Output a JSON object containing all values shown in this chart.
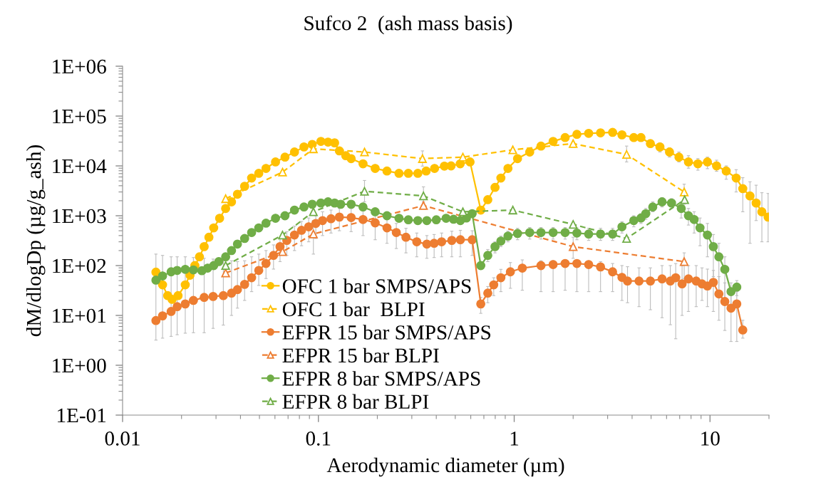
{
  "chart_data": {
    "type": "line",
    "title": "Sufco 2  (ash mass basis)",
    "xlabel": "Aerodynamic diameter (µm)",
    "ylabel": "dM/dlogDp (µg/g_ash)",
    "log": "xy",
    "xlim": [
      0.01,
      20
    ],
    "xticks": [
      0.01,
      0.1,
      1,
      10
    ],
    "ylim": [
      0.1,
      1000000
    ],
    "yticks": [
      {
        "value": 0.1,
        "label": "1E-01"
      },
      {
        "value": 1,
        "label": "1E+00"
      },
      {
        "value": 10,
        "label": "1E+01"
      },
      {
        "value": 100,
        "label": "1E+02"
      },
      {
        "value": 1000,
        "label": "1E+03"
      },
      {
        "value": 10000,
        "label": "1E+04"
      },
      {
        "value": 100000,
        "label": "1E+05"
      },
      {
        "value": 1000000,
        "label": "1E+06"
      }
    ],
    "legend": "bottom left",
    "series": [
      {
        "name": "OFC 1 bar SMPS/APS",
        "color": "#ffc000",
        "marker": "circle",
        "line_style": "solid",
        "x": [
          0.0148,
          0.016,
          0.017,
          0.0179,
          0.0192,
          0.0209,
          0.0221,
          0.0234,
          0.0247,
          0.0261,
          0.0276,
          0.0292,
          0.0313,
          0.0336,
          0.036,
          0.0386,
          0.042,
          0.0456,
          0.0496,
          0.054,
          0.0604,
          0.0675,
          0.0755,
          0.0844,
          0.093,
          0.103,
          0.112,
          0.121,
          0.128,
          0.138,
          0.147,
          0.169,
          0.195,
          0.224,
          0.258,
          0.288,
          0.322,
          0.355,
          0.392,
          0.44,
          0.476,
          0.53,
          0.595,
          0.675,
          0.733,
          0.798,
          0.855,
          0.929,
          1.04,
          1.2,
          1.37,
          1.58,
          1.82,
          2.09,
          2.4,
          2.76,
          3.18,
          3.55,
          4.08,
          4.44,
          4.96,
          5.55,
          6.21,
          6.94,
          7.76,
          8.67,
          9.7,
          10.8,
          12.1,
          13.6,
          14.7,
          16,
          17.2,
          18.4,
          19.8
        ],
        "values": [
          74,
          41,
          25,
          21,
          25,
          41,
          64,
          100,
          150,
          240,
          370,
          570,
          890,
          1400,
          1900,
          2700,
          3900,
          5700,
          7100,
          8900,
          12000,
          15000,
          19000,
          24000,
          27000,
          31000,
          30000,
          29000,
          20000,
          16000,
          14000,
          11000,
          8900,
          7900,
          7100,
          7100,
          7100,
          7900,
          8900,
          9900,
          10000,
          11000,
          12000,
          1300,
          2100,
          3700,
          5700,
          8900,
          14000,
          19000,
          25000,
          31000,
          37000,
          43000,
          45000,
          46000,
          47000,
          42000,
          37000,
          37000,
          28000,
          24000,
          19000,
          15000,
          12000,
          11000,
          12000,
          10000,
          7900,
          5700,
          3500,
          2500,
          1800,
          1200,
          940
        ],
        "errors": [
          null,
          null,
          null,
          null,
          null,
          null,
          null,
          null,
          null,
          null,
          null,
          null,
          null,
          null,
          null,
          null,
          null,
          null,
          null,
          null,
          null,
          null,
          null,
          null,
          null,
          null,
          null,
          null,
          null,
          null,
          null,
          null,
          null,
          null,
          null,
          null,
          null,
          null,
          null,
          null,
          null,
          null,
          null,
          null,
          null,
          null,
          null,
          null,
          null,
          null,
          null,
          null,
          null,
          null,
          null,
          null,
          null,
          null,
          null,
          null,
          null,
          [
            19000,
            29000
          ],
          [
            15000,
            23000
          ],
          [
            12000,
            19000
          ],
          [
            9000,
            16000
          ],
          [
            8200,
            14000
          ],
          [
            8800,
            15000
          ],
          [
            7800,
            13000
          ],
          [
            5400,
            10000
          ],
          [
            3000,
            8400
          ],
          [
            1200,
            5800
          ],
          [
            280,
            4800
          ],
          [
            800,
            4100
          ],
          [
            300,
            2900
          ],
          [
            300,
            2800
          ]
        ]
      },
      {
        "name": "OFC 1 bar  BLPI",
        "color": "#ffc000",
        "marker": "triangle",
        "line_style": "dashed",
        "x": [
          0.0336,
          0.0656,
          0.0943,
          0.172,
          0.34,
          0.547,
          0.984,
          2.0,
          3.75,
          7.38
        ],
        "values": [
          2200,
          7500,
          22000,
          19000,
          14000,
          15000,
          21000,
          28000,
          17000,
          3000
        ],
        "errors": [
          null,
          null,
          null,
          null,
          [
            9900,
            20000
          ],
          null,
          null,
          null,
          [
            12000,
            25000
          ],
          [
            1700,
            4300
          ]
        ]
      },
      {
        "name": "EFPR 15 bar SMPS/APS",
        "color": "#ed7d31",
        "marker": "circle",
        "line_style": "solid",
        "x": [
          0.0148,
          0.016,
          0.0177,
          0.019,
          0.0209,
          0.023,
          0.0261,
          0.029,
          0.0327,
          0.036,
          0.0386,
          0.042,
          0.0456,
          0.0496,
          0.054,
          0.059,
          0.0637,
          0.069,
          0.0755,
          0.082,
          0.0892,
          0.097,
          0.105,
          0.116,
          0.128,
          0.147,
          0.169,
          0.195,
          0.224,
          0.25,
          0.28,
          0.318,
          0.358,
          0.39,
          0.426,
          0.48,
          0.531,
          0.61,
          0.675,
          0.733,
          0.786,
          0.855,
          0.956,
          1.1,
          1.37,
          1.58,
          1.82,
          2.09,
          2.4,
          2.76,
          3.18,
          3.55,
          3.79,
          4.34,
          4.96,
          5.69,
          6.27,
          6.68,
          7.2,
          7.76,
          8.5,
          9.1,
          9.7,
          10.4,
          11.1,
          11.9,
          12.8,
          13.7,
          14.7
        ],
        "values": [
          7.9,
          9.8,
          12,
          15,
          17,
          20,
          23,
          24,
          25,
          28,
          33,
          42,
          57,
          80,
          110,
          160,
          240,
          320,
          410,
          510,
          600,
          700,
          800,
          870,
          940,
          920,
          840,
          720,
          570,
          460,
          370,
          300,
          270,
          280,
          300,
          320,
          330,
          330,
          17,
          28,
          41,
          57,
          75,
          89,
          100,
          105,
          110,
          110,
          105,
          94,
          75,
          58,
          49,
          49,
          49,
          54,
          49,
          57,
          43,
          54,
          49,
          43,
          39,
          46,
          27,
          19,
          14,
          17,
          5.1
        ],
        "errors": [
          [
            3.2,
            170
          ],
          [
            3.5,
            160
          ],
          [
            3.8,
            150
          ],
          [
            4.1,
            150
          ],
          [
            4.4,
            150
          ],
          [
            4.5,
            145
          ],
          [
            4.5,
            140
          ],
          [
            5.5,
            135
          ],
          [
            6.4,
            130
          ],
          [
            10,
            125
          ],
          [
            14,
            120
          ],
          [
            20,
            125
          ],
          [
            30,
            150
          ],
          [
            40,
            170
          ],
          [
            55,
            200
          ],
          [
            85,
            260
          ],
          [
            120,
            360
          ],
          [
            160,
            480
          ],
          [
            200,
            620
          ],
          [
            250,
            770
          ],
          [
            300,
            900
          ],
          [
            350,
            1000
          ],
          [
            400,
            1200
          ],
          [
            450,
            1300
          ],
          [
            500,
            1400
          ],
          [
            480,
            1400
          ],
          [
            400,
            1300
          ],
          [
            330,
            1100
          ],
          [
            280,
            860
          ],
          [
            220,
            700
          ],
          [
            180,
            560
          ],
          [
            150,
            450
          ],
          [
            140,
            400
          ],
          [
            145,
            420
          ],
          [
            150,
            450
          ],
          [
            150,
            490
          ],
          [
            150,
            510
          ],
          [
            160,
            500
          ],
          [
            11,
            23
          ],
          [
            18,
            38
          ],
          [
            25,
            57
          ],
          [
            30,
            84
          ],
          [
            35,
            115
          ],
          [
            32,
            130
          ],
          [
            30,
            125
          ],
          [
            30,
            125
          ],
          [
            32,
            130
          ],
          [
            30,
            125
          ],
          [
            30,
            120
          ],
          [
            30,
            120
          ],
          [
            30,
            110
          ],
          [
            20,
            100
          ],
          [
            18,
            95
          ],
          [
            15,
            90
          ],
          [
            13,
            90
          ],
          [
            9,
            100
          ],
          [
            6.5,
            100
          ],
          [
            3.4,
            110
          ],
          [
            10,
            100
          ],
          [
            12,
            100
          ],
          [
            15,
            100
          ],
          [
            20,
            90
          ],
          [
            15,
            85
          ],
          [
            12,
            80
          ],
          [
            8,
            60
          ],
          [
            5,
            45
          ],
          [
            3,
            35
          ],
          [
            3,
            30
          ],
          [
            3.5,
            8
          ]
        ]
      },
      {
        "name": "EFPR 15 bar BLPI",
        "color": "#ed7d31",
        "marker": "triangle",
        "line_style": "dashed",
        "x": [
          0.0336,
          0.0656,
          0.0943,
          0.344,
          2.0,
          7.38
        ],
        "values": [
          71,
          190,
          430,
          1600,
          240,
          120
        ],
        "errors": [
          null,
          null,
          [
            170,
            800
          ],
          null,
          [
            140,
            370
          ],
          [
            55,
            180
          ]
        ]
      },
      {
        "name": "EFPR 8 bar SMPS/APS",
        "color": "#70ad47",
        "marker": "circle",
        "line_style": "solid",
        "x": [
          0.0148,
          0.016,
          0.0177,
          0.019,
          0.0209,
          0.023,
          0.0254,
          0.0272,
          0.0292,
          0.031,
          0.0336,
          0.036,
          0.0386,
          0.042,
          0.0456,
          0.0496,
          0.054,
          0.0604,
          0.0675,
          0.0755,
          0.0844,
          0.093,
          0.103,
          0.112,
          0.121,
          0.13,
          0.147,
          0.169,
          0.195,
          0.224,
          0.258,
          0.288,
          0.322,
          0.358,
          0.4,
          0.449,
          0.49,
          0.531,
          0.57,
          0.61,
          0.675,
          0.733,
          0.798,
          0.855,
          0.929,
          1.04,
          1.2,
          1.37,
          1.58,
          1.82,
          2.09,
          2.4,
          2.76,
          3.18,
          3.55,
          4.08,
          4.44,
          4.7,
          5.1,
          5.69,
          6.36,
          7.13,
          7.76,
          8.3,
          8.89,
          9.7,
          10.4,
          11.1,
          11.9,
          12.8,
          13.7
        ],
        "values": [
          51,
          62,
          75,
          80,
          84,
          82,
          79,
          89,
          100,
          120,
          150,
          200,
          270,
          350,
          460,
          570,
          710,
          890,
          1000,
          1300,
          1500,
          1700,
          1800,
          1900,
          1800,
          1700,
          1700,
          1500,
          1200,
          1000,
          890,
          830,
          800,
          800,
          830,
          890,
          850,
          800,
          900,
          1100,
          100,
          160,
          240,
          310,
          390,
          440,
          460,
          460,
          460,
          460,
          450,
          430,
          430,
          430,
          600,
          800,
          900,
          1100,
          1500,
          1900,
          1800,
          1400,
          1000,
          840,
          570,
          410,
          240,
          150,
          84,
          30,
          37
        ],
        "errors": [
          null,
          null,
          null,
          null,
          null,
          null,
          null,
          null,
          null,
          null,
          null,
          null,
          null,
          null,
          null,
          null,
          null,
          null,
          null,
          null,
          null,
          null,
          null,
          null,
          null,
          null,
          null,
          null,
          null,
          null,
          null,
          null,
          null,
          null,
          null,
          null,
          null,
          null,
          null,
          null,
          null,
          [
            120,
            210
          ],
          [
            180,
            300
          ],
          [
            240,
            390
          ],
          [
            300,
            490
          ],
          [
            330,
            560
          ],
          [
            340,
            580
          ],
          [
            340,
            580
          ],
          [
            340,
            580
          ],
          [
            340,
            580
          ],
          [
            330,
            570
          ],
          [
            320,
            560
          ],
          [
            320,
            560
          ],
          [
            320,
            560
          ],
          [
            450,
            760
          ],
          [
            600,
            1000
          ],
          [
            700,
            1100
          ],
          [
            850,
            1400
          ],
          [
            1200,
            1900
          ],
          [
            1500,
            2300
          ],
          [
            1400,
            2200
          ],
          [
            900,
            1900
          ],
          [
            650,
            1400
          ],
          [
            450,
            1200
          ],
          [
            250,
            900
          ],
          [
            150,
            700
          ],
          [
            60,
            420
          ],
          [
            30,
            280
          ],
          [
            20,
            150
          ],
          [
            15,
            45
          ],
          [
            25,
            50
          ]
        ]
      },
      {
        "name": "EFPR 8 bar BLPI",
        "color": "#70ad47",
        "marker": "triangle",
        "line_style": "dashed",
        "x": [
          0.0336,
          0.0656,
          0.0943,
          0.172,
          0.344,
          0.547,
          0.984,
          2.0,
          3.75,
          7.42
        ],
        "values": [
          100,
          410,
          1200,
          3100,
          2500,
          1200,
          1300,
          670,
          350,
          2100
        ],
        "errors": [
          null,
          null,
          null,
          [
            1900,
            5100
          ],
          [
            1900,
            3800
          ],
          null,
          null,
          null,
          null,
          null
        ]
      }
    ]
  }
}
